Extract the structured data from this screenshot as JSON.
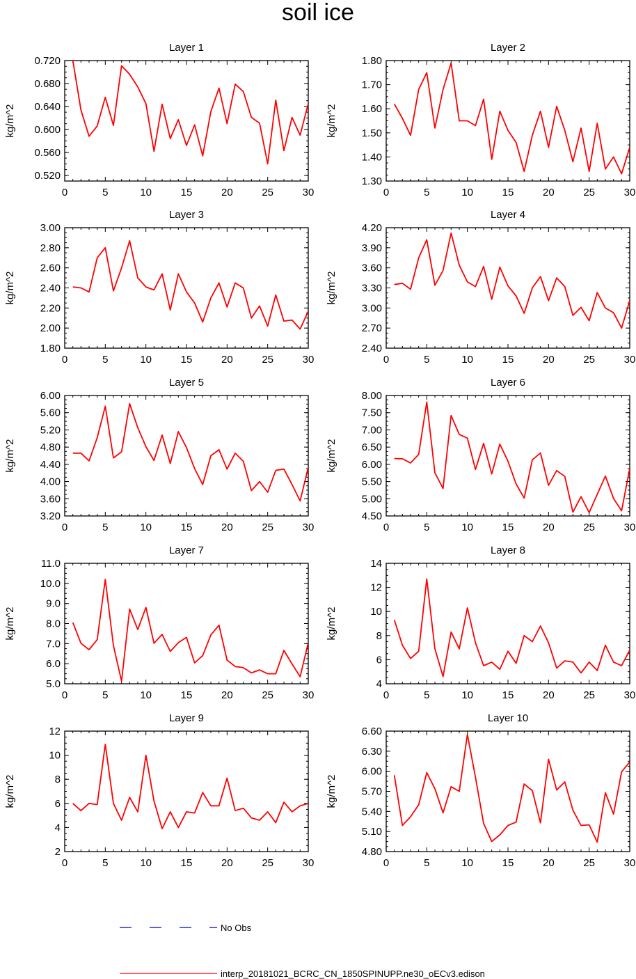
{
  "title": "soil ice",
  "colors": {
    "model": "#ff0000",
    "obs": "#0000cc",
    "axis": "#000000"
  },
  "legend": {
    "obs_label": "No Obs",
    "model_label": "interp_20181021_BCRC_CN_1850SPINUPP.ne30_oECv3.edison"
  },
  "chart_data": [
    {
      "type": "line",
      "title": "Layer 1",
      "ylabel": "kg/m^2",
      "xlim": [
        0,
        30
      ],
      "ylim": [
        0.51,
        0.72
      ],
      "xticks": [
        "0",
        "5",
        "10",
        "15",
        "20",
        "25",
        "30"
      ],
      "yticks": [
        "0.520",
        "0.560",
        "0.600",
        "0.640",
        "0.680",
        "0.720"
      ],
      "x": [
        1,
        2,
        3,
        4,
        5,
        6,
        7,
        8,
        9,
        10,
        11,
        12,
        13,
        14,
        15,
        16,
        17,
        18,
        19,
        20,
        21,
        22,
        23,
        24,
        25,
        26,
        27,
        28,
        29,
        30
      ],
      "series": [
        {
          "name": "interp_20181021_BCRC_CN_1850SPINUPP.ne30_oECv3.edison",
          "values": [
            0.72,
            0.634,
            0.588,
            0.606,
            0.656,
            0.607,
            0.711,
            0.696,
            0.674,
            0.645,
            0.562,
            0.644,
            0.584,
            0.617,
            0.572,
            0.608,
            0.554,
            0.631,
            0.672,
            0.61,
            0.679,
            0.666,
            0.621,
            0.611,
            0.54,
            0.651,
            0.563,
            0.621,
            0.59,
            0.645
          ]
        }
      ]
    },
    {
      "type": "line",
      "title": "Layer 2",
      "ylabel": "kg/m^2",
      "xlim": [
        0,
        30
      ],
      "ylim": [
        1.3,
        1.8
      ],
      "xticks": [
        "0",
        "5",
        "10",
        "15",
        "20",
        "25",
        "30"
      ],
      "yticks": [
        "1.30",
        "1.40",
        "1.50",
        "1.60",
        "1.70",
        "1.80"
      ],
      "x": [
        1,
        2,
        3,
        4,
        5,
        6,
        7,
        8,
        9,
        10,
        11,
        12,
        13,
        14,
        15,
        16,
        17,
        18,
        19,
        20,
        21,
        22,
        23,
        24,
        25,
        26,
        27,
        28,
        29,
        30
      ],
      "series": [
        {
          "name": "interp_20181021_BCRC_CN_1850SPINUPP.ne30_oECv3.edison",
          "values": [
            1.62,
            1.56,
            1.49,
            1.68,
            1.75,
            1.52,
            1.68,
            1.79,
            1.55,
            1.55,
            1.53,
            1.64,
            1.39,
            1.59,
            1.51,
            1.46,
            1.34,
            1.49,
            1.59,
            1.44,
            1.61,
            1.51,
            1.38,
            1.52,
            1.34,
            1.54,
            1.35,
            1.4,
            1.33,
            1.44
          ]
        }
      ]
    },
    {
      "type": "line",
      "title": "Layer 3",
      "ylabel": "kg/m^2",
      "xlim": [
        0,
        30
      ],
      "ylim": [
        1.8,
        3.0
      ],
      "xticks": [
        "0",
        "5",
        "10",
        "15",
        "20",
        "25",
        "30"
      ],
      "yticks": [
        "1.80",
        "2.00",
        "2.20",
        "2.40",
        "2.60",
        "2.80",
        "3.00"
      ],
      "x": [
        1,
        2,
        3,
        4,
        5,
        6,
        7,
        8,
        9,
        10,
        11,
        12,
        13,
        14,
        15,
        16,
        17,
        18,
        19,
        20,
        21,
        22,
        23,
        24,
        25,
        26,
        27,
        28,
        29,
        30
      ],
      "series": [
        {
          "name": "interp_20181021_BCRC_CN_1850SPINUPP.ne30_oECv3.edison",
          "values": [
            2.41,
            2.4,
            2.36,
            2.7,
            2.8,
            2.37,
            2.6,
            2.87,
            2.5,
            2.41,
            2.38,
            2.54,
            2.18,
            2.54,
            2.36,
            2.25,
            2.06,
            2.3,
            2.45,
            2.21,
            2.45,
            2.4,
            2.1,
            2.22,
            2.02,
            2.33,
            2.07,
            2.08,
            1.99,
            2.17
          ]
        }
      ]
    },
    {
      "type": "line",
      "title": "Layer 4",
      "ylabel": "kg/m^2",
      "xlim": [
        0,
        30
      ],
      "ylim": [
        2.4,
        4.2
      ],
      "xticks": [
        "0",
        "5",
        "10",
        "15",
        "20",
        "25",
        "30"
      ],
      "yticks": [
        "2.40",
        "2.70",
        "3.00",
        "3.30",
        "3.60",
        "3.90",
        "4.20"
      ],
      "x": [
        1,
        2,
        3,
        4,
        5,
        6,
        7,
        8,
        9,
        10,
        11,
        12,
        13,
        14,
        15,
        16,
        17,
        18,
        19,
        20,
        21,
        22,
        23,
        24,
        25,
        26,
        27,
        28,
        29,
        30
      ],
      "series": [
        {
          "name": "interp_20181021_BCRC_CN_1850SPINUPP.ne30_oECv3.edison",
          "values": [
            3.35,
            3.37,
            3.28,
            3.75,
            4.02,
            3.34,
            3.56,
            4.12,
            3.64,
            3.39,
            3.32,
            3.62,
            3.13,
            3.61,
            3.33,
            3.18,
            2.92,
            3.3,
            3.47,
            3.11,
            3.45,
            3.32,
            2.89,
            3.01,
            2.81,
            3.23,
            3.0,
            2.93,
            2.7,
            3.11
          ]
        }
      ]
    },
    {
      "type": "line",
      "title": "Layer 5",
      "ylabel": "kg/m^2",
      "xlim": [
        0,
        30
      ],
      "ylim": [
        3.2,
        6.0
      ],
      "xticks": [
        "0",
        "5",
        "10",
        "15",
        "20",
        "25",
        "30"
      ],
      "yticks": [
        "3.20",
        "3.60",
        "4.00",
        "4.40",
        "4.80",
        "5.20",
        "5.60",
        "6.00"
      ],
      "x": [
        1,
        2,
        3,
        4,
        5,
        6,
        7,
        8,
        9,
        10,
        11,
        12,
        13,
        14,
        15,
        16,
        17,
        18,
        19,
        20,
        21,
        22,
        23,
        24,
        25,
        26,
        27,
        28,
        29,
        30
      ],
      "series": [
        {
          "name": "interp_20181021_BCRC_CN_1850SPINUPP.ne30_oECv3.edison",
          "values": [
            4.66,
            4.66,
            4.48,
            5.02,
            5.75,
            4.55,
            4.69,
            5.81,
            5.25,
            4.81,
            4.49,
            5.08,
            4.42,
            5.16,
            4.79,
            4.3,
            3.93,
            4.6,
            4.74,
            4.29,
            4.66,
            4.47,
            3.79,
            4.0,
            3.75,
            4.26,
            4.29,
            3.93,
            3.55,
            4.33
          ]
        }
      ]
    },
    {
      "type": "line",
      "title": "Layer 6",
      "ylabel": "kg/m^2",
      "xlim": [
        0,
        30
      ],
      "ylim": [
        4.5,
        8.0
      ],
      "xticks": [
        "0",
        "5",
        "10",
        "15",
        "20",
        "25",
        "30"
      ],
      "yticks": [
        "4.50",
        "5.00",
        "5.50",
        "6.00",
        "6.50",
        "7.00",
        "7.50",
        "8.00"
      ],
      "x": [
        1,
        2,
        3,
        4,
        5,
        6,
        7,
        8,
        9,
        10,
        11,
        12,
        13,
        14,
        15,
        16,
        17,
        18,
        19,
        20,
        21,
        22,
        23,
        24,
        25,
        26,
        27,
        28,
        29,
        30
      ],
      "series": [
        {
          "name": "interp_20181021_BCRC_CN_1850SPINUPP.ne30_oECv3.edison",
          "values": [
            6.17,
            6.16,
            6.04,
            6.29,
            7.81,
            5.75,
            5.3,
            7.42,
            6.87,
            6.76,
            5.85,
            6.61,
            5.72,
            6.59,
            6.09,
            5.43,
            5.02,
            6.13,
            6.33,
            5.39,
            5.82,
            5.65,
            4.61,
            5.06,
            4.6,
            5.13,
            5.66,
            5.01,
            4.65,
            5.88
          ]
        }
      ]
    },
    {
      "type": "line",
      "title": "Layer 7",
      "ylabel": "kg/m^2",
      "xlim": [
        0,
        30
      ],
      "ylim": [
        5.0,
        11.0
      ],
      "xticks": [
        "0",
        "5",
        "10",
        "15",
        "20",
        "25",
        "30"
      ],
      "yticks": [
        "5.0",
        "6.0",
        "7.0",
        "8.0",
        "9.0",
        "10.0",
        "11.0"
      ],
      "x": [
        1,
        2,
        3,
        4,
        5,
        6,
        7,
        8,
        9,
        10,
        11,
        12,
        13,
        14,
        15,
        16,
        17,
        18,
        19,
        20,
        21,
        22,
        23,
        24,
        25,
        26,
        27,
        28,
        29,
        30
      ],
      "series": [
        {
          "name": "interp_20181021_BCRC_CN_1850SPINUPP.ne30_oECv3.edison",
          "values": [
            8.05,
            7.02,
            6.7,
            7.2,
            10.2,
            6.9,
            5.13,
            8.72,
            7.7,
            8.8,
            7.02,
            7.46,
            6.61,
            7.05,
            7.31,
            6.04,
            6.4,
            7.43,
            7.92,
            6.18,
            5.86,
            5.8,
            5.54,
            5.69,
            5.5,
            5.5,
            6.66,
            5.99,
            5.35,
            7.05
          ]
        }
      ]
    },
    {
      "type": "line",
      "title": "Layer 8",
      "ylabel": "kg/m^2",
      "xlim": [
        0,
        30
      ],
      "ylim": [
        4,
        14
      ],
      "xticks": [
        "0",
        "5",
        "10",
        "15",
        "20",
        "25",
        "30"
      ],
      "yticks": [
        "4",
        "6",
        "8",
        "10",
        "12",
        "14"
      ],
      "x": [
        1,
        2,
        3,
        4,
        5,
        6,
        7,
        8,
        9,
        10,
        11,
        12,
        13,
        14,
        15,
        16,
        17,
        18,
        19,
        20,
        21,
        22,
        23,
        24,
        25,
        26,
        27,
        28,
        29,
        30
      ],
      "series": [
        {
          "name": "interp_20181021_BCRC_CN_1850SPINUPP.ne30_oECv3.edison",
          "values": [
            9.3,
            7.2,
            6.1,
            6.7,
            12.7,
            6.9,
            4.6,
            8.3,
            6.9,
            10.3,
            7.4,
            5.5,
            5.8,
            5.2,
            6.7,
            5.7,
            8.0,
            7.5,
            8.8,
            7.4,
            5.3,
            5.9,
            5.8,
            4.9,
            5.8,
            5.1,
            7.2,
            5.8,
            5.5,
            6.8
          ]
        }
      ]
    },
    {
      "type": "line",
      "title": "Layer 9",
      "ylabel": "kg/m^2",
      "xlim": [
        0,
        30
      ],
      "ylim": [
        2,
        12
      ],
      "xticks": [
        "0",
        "5",
        "10",
        "15",
        "20",
        "25",
        "30"
      ],
      "yticks": [
        "2",
        "4",
        "6",
        "8",
        "10",
        "12"
      ],
      "x": [
        1,
        2,
        3,
        4,
        5,
        6,
        7,
        8,
        9,
        10,
        11,
        12,
        13,
        14,
        15,
        16,
        17,
        18,
        19,
        20,
        21,
        22,
        23,
        24,
        25,
        26,
        27,
        28,
        29,
        30
      ],
      "series": [
        {
          "name": "interp_20181021_BCRC_CN_1850SPINUPP.ne30_oECv3.edison",
          "values": [
            6.0,
            5.4,
            6.0,
            5.9,
            10.9,
            6.0,
            4.6,
            6.5,
            5.3,
            10.0,
            6.2,
            3.9,
            5.3,
            4.0,
            5.3,
            5.2,
            6.9,
            5.8,
            5.8,
            8.1,
            5.4,
            5.6,
            4.8,
            4.6,
            5.3,
            4.4,
            6.1,
            5.3,
            5.8,
            6.0
          ]
        }
      ]
    },
    {
      "type": "line",
      "title": "Layer 10",
      "ylabel": "kg/m^2",
      "xlim": [
        0,
        30
      ],
      "ylim": [
        4.8,
        6.6
      ],
      "xticks": [
        "0",
        "5",
        "10",
        "15",
        "20",
        "25",
        "30"
      ],
      "yticks": [
        "4.80",
        "5.10",
        "5.40",
        "5.70",
        "6.00",
        "6.30",
        "6.60"
      ],
      "x": [
        1,
        2,
        3,
        4,
        5,
        6,
        7,
        8,
        9,
        10,
        11,
        12,
        13,
        14,
        15,
        16,
        17,
        18,
        19,
        20,
        21,
        22,
        23,
        24,
        25,
        26,
        27,
        28,
        29,
        30
      ],
      "series": [
        {
          "name": "interp_20181021_BCRC_CN_1850SPINUPP.ne30_oECv3.edison",
          "values": [
            5.94,
            5.19,
            5.32,
            5.5,
            5.98,
            5.74,
            5.38,
            5.77,
            5.7,
            6.55,
            5.91,
            5.22,
            4.95,
            5.05,
            5.19,
            5.24,
            5.81,
            5.71,
            5.23,
            6.18,
            5.72,
            5.84,
            5.42,
            5.19,
            5.2,
            4.94,
            5.68,
            5.36,
            5.99,
            6.14
          ]
        }
      ]
    }
  ]
}
